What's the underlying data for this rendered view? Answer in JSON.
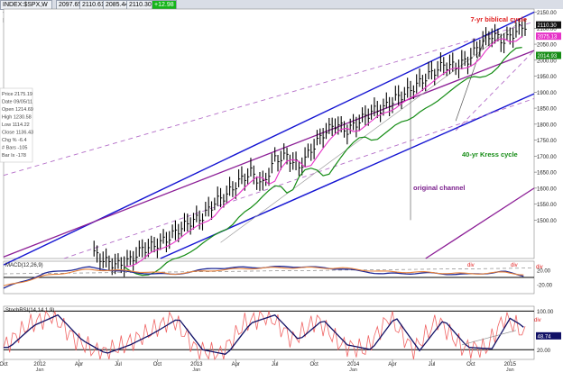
{
  "header": {
    "symbol": "INDEX:$SPX,W -- S&P 500 INDEX",
    "values": [
      "2097.65",
      "2110.61",
      "2085.44",
      "2110.30",
      "+12.98"
    ]
  },
  "infobox": {
    "rows": [
      "Price 2175.19",
      "Date 09/05/11",
      "Open 1214.69",
      "High 1230.58",
      "Low 1114.22",
      "Close 1136.43",
      "Chg % -6.4",
      "# Bars -105",
      "Bar Ix -178"
    ]
  },
  "annotations": {
    "biblical": "7-yr biblical cycle",
    "kress": "40-yr Kress cycle",
    "channel": "original channel",
    "div1": "div",
    "div2": "div",
    "div3": "div",
    "div4": "div"
  },
  "price_tags": {
    "last": "2110.30",
    "magenta": "2075.13",
    "green": "2014.93"
  },
  "panels": {
    "macd_title": "MACD(12,26,9)",
    "stoch_title": "StochRSI(14,14,1,9)",
    "stoch_value": "48.74"
  },
  "colors": {
    "price_bar": "#000000",
    "blue_channel": "#1414d2",
    "purple_line": "#8c1e96",
    "dashed_purple": "#b46ec8",
    "ma_magenta": "#e632c8",
    "ma_green": "#148c14",
    "macd_line": "#1e2896",
    "macd_signal": "#e6823c",
    "stoch_red": "#f06464"
  },
  "chart_data": [
    {
      "type": "line",
      "title": "",
      "ylim": [
        1380,
        2160
      ],
      "y_ticks": [
        "2150.00",
        "2100.00",
        "2050.00",
        "2000.00",
        "1950.00",
        "1900.00",
        "1850.00",
        "1800.00",
        "1750.00",
        "1700.00",
        "1650.00",
        "1600.00",
        "1550.00",
        "1500.00"
      ],
      "x_ticks": [
        "Oct",
        "2012",
        "Apr",
        "Jul",
        "Oct",
        "2013",
        "Apr",
        "Jul",
        "Oct",
        "2014",
        "Apr",
        "Jul",
        "Oct",
        "2015"
      ],
      "x_ticks_sub": [
        "",
        "Jan",
        "",
        "",
        "",
        "Jan",
        "",
        "",
        "",
        "Jan",
        "",
        "",
        "",
        "Jan"
      ],
      "x_index": [
        0,
        12,
        25,
        38,
        51,
        64,
        77,
        90,
        103,
        116,
        129,
        142,
        155,
        168
      ],
      "series": [
        {
          "name": "",
          "x_index": [
            30,
            34,
            38,
            42,
            46,
            50,
            54,
            58,
            62,
            66,
            70,
            74,
            78,
            82,
            86,
            90,
            94,
            98,
            102,
            106,
            110,
            114,
            118,
            122,
            126,
            130,
            134,
            138,
            142,
            146,
            150,
            154,
            158,
            162,
            166,
            170,
            173
          ],
          "close": [
            1395,
            1370,
            1360,
            1375,
            1410,
            1420,
            1440,
            1470,
            1495,
            1510,
            1555,
            1580,
            1620,
            1650,
            1610,
            1690,
            1700,
            1665,
            1720,
            1770,
            1800,
            1780,
            1810,
            1840,
            1850,
            1880,
            1900,
            1930,
            1960,
            1985,
            1980,
            2000,
            2050,
            2080,
            2060,
            2090,
            2110
          ]
        }
      ]
    },
    {
      "type": "line",
      "title": "MACD(12,26,9)",
      "ylim": [
        -45,
        45
      ],
      "y_ticks": [
        "20.00",
        "-20.00"
      ],
      "series": [
        {
          "name": "",
          "x_index": [
            0,
            14,
            28,
            42,
            56,
            70,
            84,
            98,
            112,
            126,
            140,
            154,
            166,
            173
          ],
          "values": [
            -30,
            12,
            28,
            14,
            8,
            26,
            28,
            30,
            24,
            10,
            12,
            8,
            16,
            4
          ]
        },
        {
          "name": "",
          "x_index": [
            0,
            14,
            28,
            42,
            56,
            70,
            84,
            98,
            112,
            126,
            140,
            154,
            166,
            173
          ],
          "values": [
            -25,
            5,
            22,
            18,
            10,
            20,
            26,
            27,
            26,
            16,
            14,
            10,
            14,
            8
          ]
        }
      ]
    },
    {
      "type": "line",
      "title": "StochRSI(14,14,1,9)",
      "ylim": [
        0,
        110
      ],
      "y_ticks": [
        "100.00",
        "20.00"
      ],
      "series": [
        {
          "name": "",
          "x_index": [
            0,
            8,
            16,
            24,
            32,
            40,
            48,
            56,
            64,
            72,
            80,
            88,
            96,
            104,
            112,
            120,
            128,
            136,
            144,
            152,
            160,
            166,
            170,
            173
          ],
          "values": [
            25,
            70,
            92,
            40,
            12,
            30,
            55,
            85,
            20,
            10,
            75,
            92,
            40,
            82,
            30,
            20,
            88,
            18,
            82,
            25,
            22,
            85,
            70,
            49
          ]
        }
      ]
    }
  ]
}
